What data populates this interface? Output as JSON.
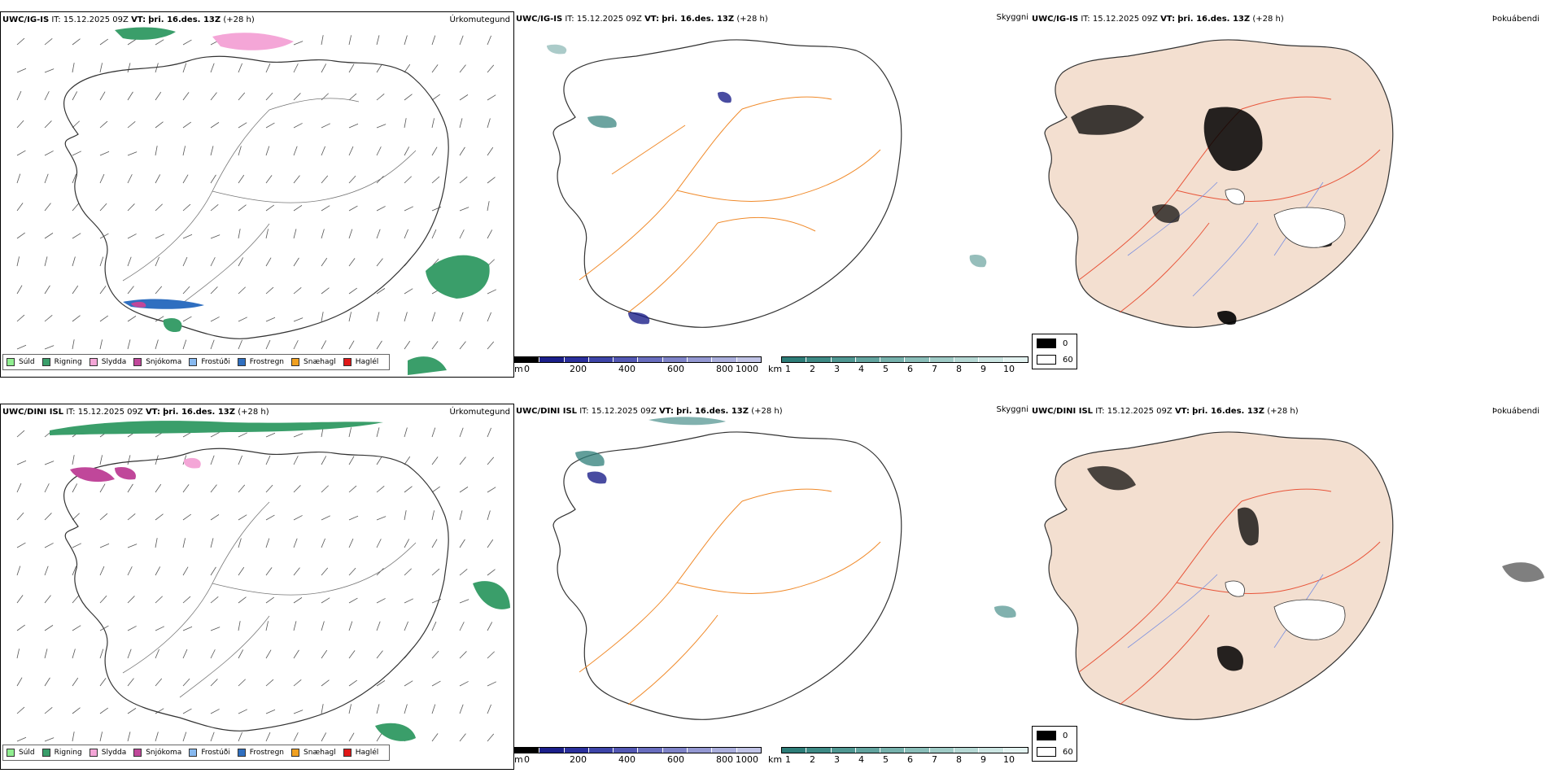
{
  "rows": [
    {
      "model": "UWC/IG-IS",
      "it_label": "IT:",
      "it_value": "15.12.2025 09Z",
      "vt_label": "VT:",
      "vt_value": "þri. 16.des. 13Z",
      "lead": "(+28 h)"
    },
    {
      "model": "UWC/DINI ISL",
      "it_label": "IT:",
      "it_value": "15.12.2025 09Z",
      "vt_label": "VT:",
      "vt_value": "þri. 16.des. 13Z",
      "lead": "(+28 h)"
    }
  ],
  "panel_titles": {
    "precip": "Úrkomutegund",
    "visibility": "Skyggni",
    "fog": "Þokuábendi"
  },
  "precip_legend": [
    {
      "label": "Súld",
      "color": "#90ee90"
    },
    {
      "label": "Rigning",
      "color": "#3a9e6a"
    },
    {
      "label": "Slydda",
      "color": "#f4a6d7"
    },
    {
      "label": "Snjókoma",
      "color": "#c0479a"
    },
    {
      "label": "Frostúði",
      "color": "#87b9f0"
    },
    {
      "label": "Frostregn",
      "color": "#2f6fc0"
    },
    {
      "label": "Snæhagl",
      "color": "#f0a020"
    },
    {
      "label": "Haglél",
      "color": "#e01818"
    }
  ],
  "height_bar": {
    "unit": "m",
    "ticks": [
      "0",
      "200",
      "400",
      "600",
      "800",
      "1000"
    ],
    "colors": [
      "#000000",
      "#1b1f8a",
      "#2a2f9c",
      "#3d44a8",
      "#5257b3",
      "#686dbe",
      "#7e83c8",
      "#9498d2",
      "#aaaedc",
      "#c0c3e6"
    ]
  },
  "km_bar": {
    "unit": "km",
    "ticks": [
      "1",
      "2",
      "3",
      "4",
      "5",
      "6",
      "7",
      "8",
      "9",
      "10"
    ],
    "colors": [
      "#2d7d78",
      "#3d8a85",
      "#4f9792",
      "#62a49f",
      "#76b1ac",
      "#8abeb9",
      "#9fcbc6",
      "#b5d8d4",
      "#cbe5e2",
      "#e2f2f0"
    ]
  },
  "fog_legend": {
    "items": [
      {
        "label": "0",
        "color": "#000000"
      },
      {
        "label": "60",
        "color": "#ffffff"
      }
    ]
  },
  "map_colors": {
    "coast": "#333333",
    "roads": "#f08a2a",
    "fog_land": "#f3dfd0",
    "fog_roads": "#e8553a",
    "rivers": "#7a8fe0",
    "rain": "#3a9e6a",
    "slydda": "#f4a6d7",
    "snow": "#c0479a",
    "lowvis": "#2d7d78",
    "height": "#1b1f8a"
  }
}
